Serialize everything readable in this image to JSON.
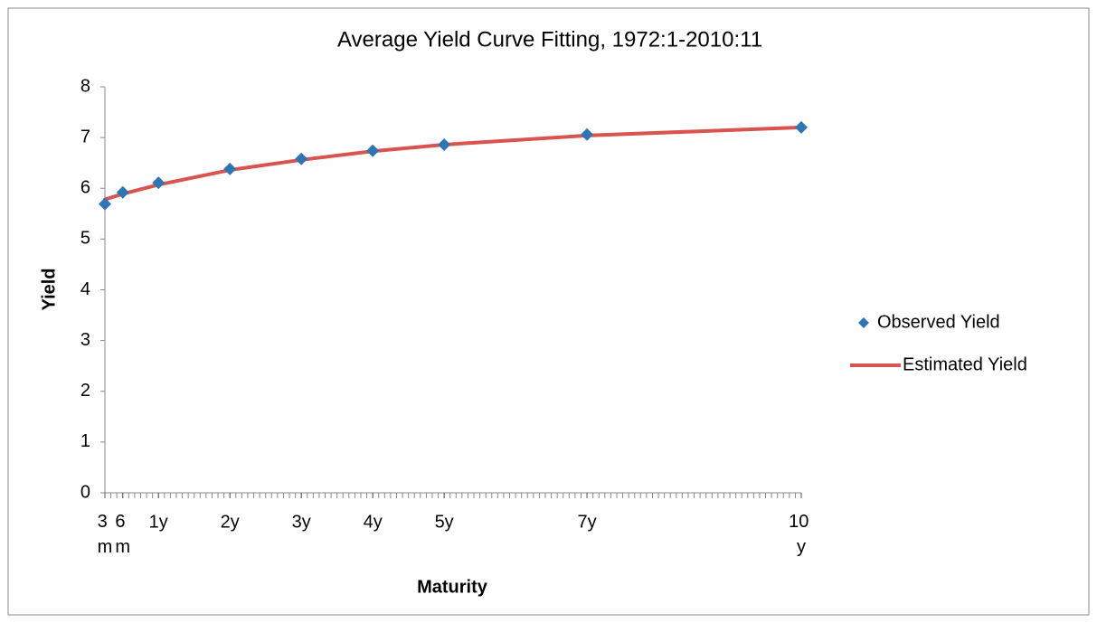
{
  "chart_data": {
    "type": "line",
    "title": "Average Yield Curve Fitting, 1972:1-2010:11",
    "x_label": "Maturity",
    "y_label": "Yield",
    "x": [
      3,
      6,
      12,
      24,
      36,
      48,
      60,
      84,
      120
    ],
    "xlim": [
      3,
      120
    ],
    "xticks": [
      {
        "value": 3,
        "label": "3 m"
      },
      {
        "value": 6,
        "label": "6 m"
      },
      {
        "value": 12,
        "label": "1y"
      },
      {
        "value": 24,
        "label": "2y"
      },
      {
        "value": 36,
        "label": "3y"
      },
      {
        "value": 48,
        "label": "4y"
      },
      {
        "value": 60,
        "label": "5y"
      },
      {
        "value": 84,
        "label": "7y"
      },
      {
        "value": 120,
        "label": "10 y"
      }
    ],
    "x_minor_tick_interval": 1,
    "ylim": [
      0,
      8
    ],
    "yticks": [
      0,
      1,
      2,
      3,
      4,
      5,
      6,
      7,
      8
    ],
    "grid": false,
    "legend": "right",
    "series": [
      {
        "name": "Observed Yield",
        "color": "#2e75b6",
        "marker": "diamond",
        "values": [
          5.69,
          5.92,
          6.11,
          6.38,
          6.58,
          6.74,
          6.86,
          7.06,
          7.2
        ]
      },
      {
        "name": "Estimated Yield",
        "color": "#d9534f",
        "marker": "line",
        "values": [
          5.78,
          5.89,
          6.07,
          6.36,
          6.56,
          6.73,
          6.86,
          7.04,
          7.2
        ]
      }
    ]
  }
}
